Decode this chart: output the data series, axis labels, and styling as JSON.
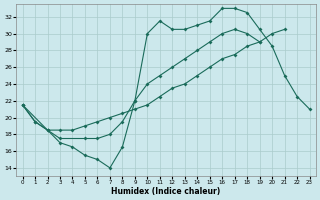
{
  "xlabel": "Humidex (Indice chaleur)",
  "bg_color": "#cce8ec",
  "grid_color": "#aacccc",
  "line_color": "#1a6b5a",
  "xlim": [
    -0.5,
    23.5
  ],
  "ylim": [
    13,
    33.5
  ],
  "yticks": [
    14,
    16,
    18,
    20,
    22,
    24,
    26,
    28,
    30,
    32
  ],
  "xticks": [
    0,
    1,
    2,
    3,
    4,
    5,
    6,
    7,
    8,
    9,
    10,
    11,
    12,
    13,
    14,
    15,
    16,
    17,
    18,
    19,
    20,
    21,
    22,
    23
  ],
  "line1_x": [
    0,
    1,
    2,
    3,
    4,
    5,
    6,
    7,
    8,
    9,
    10,
    11,
    12,
    13,
    14,
    15,
    16,
    17,
    18,
    19,
    20,
    21,
    22,
    23
  ],
  "line1_y": [
    21.5,
    19.5,
    18.5,
    17.0,
    16.5,
    15.5,
    15.0,
    14.0,
    16.5,
    22.0,
    30.0,
    31.5,
    30.5,
    30.5,
    31.0,
    31.5,
    33.0,
    33.0,
    32.5,
    30.5,
    28.5,
    25.0,
    22.5,
    21.0
  ],
  "line2_x": [
    0,
    2,
    3,
    5,
    6,
    7,
    8,
    9,
    10,
    11,
    12,
    13,
    14,
    15,
    16,
    17,
    18,
    19,
    20,
    21,
    22,
    23
  ],
  "line2_y": [
    21.5,
    18.5,
    17.5,
    17.5,
    17.5,
    18.0,
    19.5,
    22.0,
    24.0,
    25.0,
    26.0,
    27.0,
    28.0,
    29.0,
    30.0,
    30.5,
    30.0,
    29.0,
    null,
    null,
    null,
    null
  ],
  "line3_x": [
    0,
    1,
    2,
    3,
    4,
    5,
    6,
    7,
    8,
    9,
    10,
    11,
    12,
    13,
    14,
    15,
    16,
    17,
    18,
    19,
    20,
    21,
    22,
    23
  ],
  "line3_y": [
    21.5,
    19.5,
    18.5,
    18.5,
    18.5,
    19.0,
    19.5,
    20.0,
    20.5,
    21.0,
    21.5,
    22.5,
    23.5,
    24.0,
    25.0,
    26.0,
    27.0,
    27.5,
    28.5,
    29.0,
    30.0,
    30.5,
    null,
    null
  ]
}
